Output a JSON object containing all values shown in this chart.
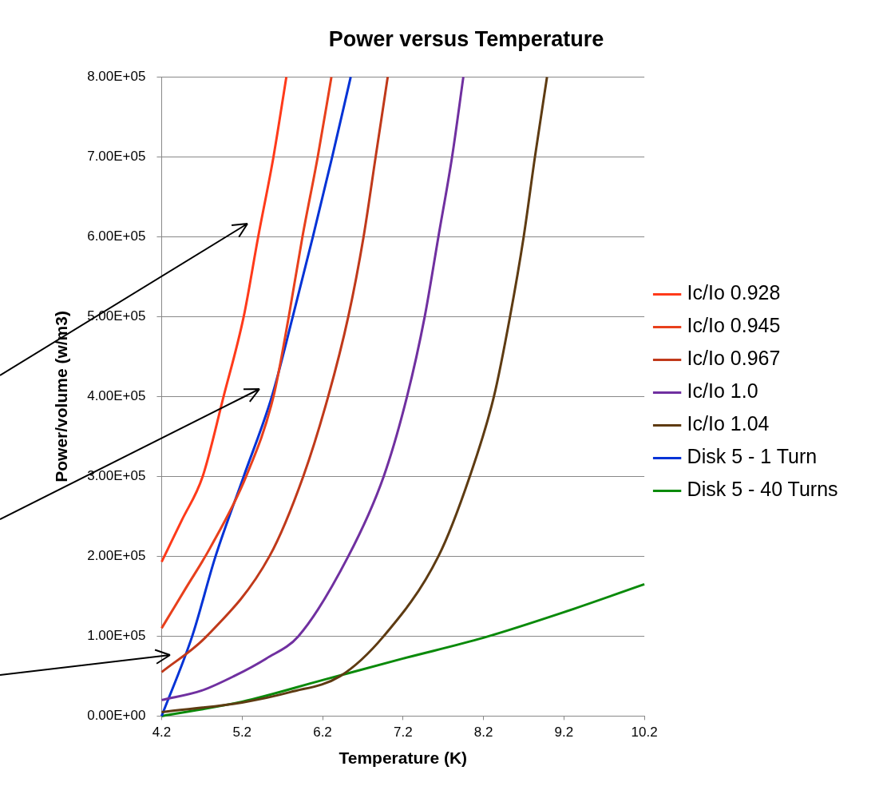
{
  "chart_data": {
    "type": "line",
    "title": "Power versus Temperature",
    "xlabel": "Temperature (K)",
    "ylabel": "Power/volume (w/m3)",
    "xlim": [
      4.2,
      10.2
    ],
    "xticks": [
      4.2,
      5.2,
      6.2,
      7.2,
      8.2,
      9.2,
      10.2
    ],
    "ylim": [
      0,
      800000
    ],
    "yticks": [
      {
        "value": 0,
        "label": "0.00E+00"
      },
      {
        "value": 100000,
        "label": "1.00E+05"
      },
      {
        "value": 200000,
        "label": "2.00E+05"
      },
      {
        "value": 300000,
        "label": "3.00E+05"
      },
      {
        "value": 400000,
        "label": "4.00E+05"
      },
      {
        "value": 500000,
        "label": "5.00E+05"
      },
      {
        "value": 600000,
        "label": "6.00E+05"
      },
      {
        "value": 700000,
        "label": "7.00E+05"
      },
      {
        "value": 800000,
        "label": "8.00E+05"
      }
    ],
    "grid": "y",
    "legend": "right",
    "marker": "none",
    "line_style": "solid",
    "series": [
      {
        "name": "Ic/Io 0.928",
        "color": "#ff3a1a",
        "x": [
          4.2,
          4.45,
          4.71,
          4.97,
          5.22,
          5.4,
          5.59,
          5.75
        ],
        "values": [
          193000,
          245000,
          300000,
          400000,
          500000,
          600000,
          700000,
          800000
        ]
      },
      {
        "name": "Ic/Io 0.945",
        "color": "#e8401c",
        "x": [
          4.2,
          4.5,
          4.8,
          5.25,
          5.59,
          5.78,
          5.95,
          6.14,
          6.31
        ],
        "values": [
          110000,
          160000,
          210000,
          300000,
          400000,
          500000,
          600000,
          700000,
          800000
        ]
      },
      {
        "name": "Ic/Io 0.967",
        "color": "#c0391a",
        "x": [
          4.2,
          4.76,
          5.54,
          5.96,
          6.27,
          6.52,
          6.71,
          6.86,
          7.01
        ],
        "values": [
          55000,
          100000,
          200000,
          300000,
          400000,
          500000,
          600000,
          700000,
          800000
        ]
      },
      {
        "name": "Ic/Io 1.0",
        "color": "#7030a0",
        "x": [
          4.2,
          4.7,
          5.1,
          5.5,
          5.9,
          6.52,
          6.96,
          7.25,
          7.47,
          7.64,
          7.81,
          7.95
        ],
        "values": [
          20000,
          32000,
          50000,
          72000,
          100000,
          200000,
          300000,
          400000,
          500000,
          600000,
          700000,
          800000
        ]
      },
      {
        "name": "Ic/Io 1.04",
        "color": "#5e3b12",
        "x": [
          4.2,
          5.2,
          5.8,
          6.42,
          6.96,
          7.64,
          8.03,
          8.33,
          8.53,
          8.7,
          8.84,
          8.99
        ],
        "values": [
          5000,
          17000,
          30000,
          50000,
          100000,
          200000,
          300000,
          400000,
          500000,
          600000,
          700000,
          800000
        ]
      },
      {
        "name": "Disk 5 - 1 Turn",
        "color": "#0433d6",
        "x": [
          4.2,
          4.58,
          4.87,
          5.22,
          5.57,
          5.83,
          6.08,
          6.32,
          6.55
        ],
        "values": [
          0,
          100000,
          200000,
          300000,
          400000,
          500000,
          600000,
          700000,
          800000
        ]
      },
      {
        "name": "Disk 5 - 40 Turns",
        "color": "#0a8a0a",
        "x": [
          4.2,
          5.2,
          6.2,
          7.2,
          8.2,
          9.2,
          10.2
        ],
        "values": [
          0,
          18000,
          45000,
          72000,
          98000,
          130000,
          165000
        ]
      }
    ]
  }
}
